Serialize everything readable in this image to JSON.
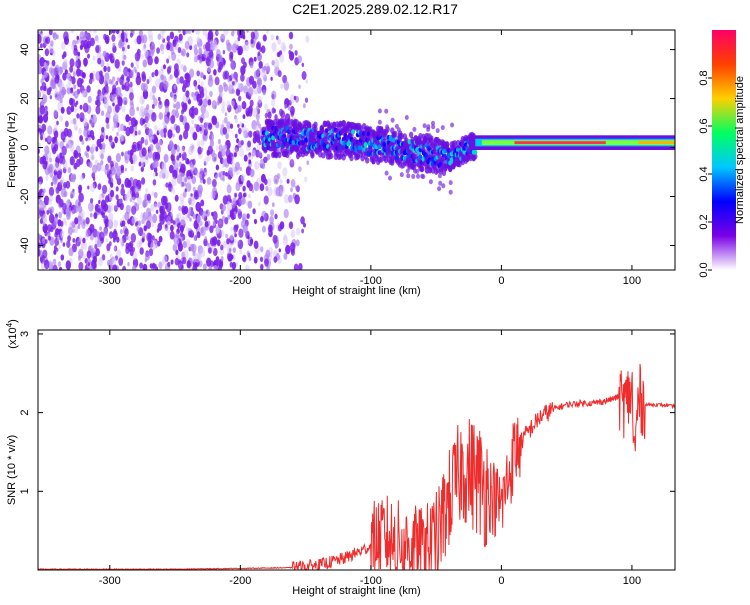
{
  "title": "C2E1.2025.289.02.12.R17",
  "chart_data": [
    {
      "type": "heatmap",
      "xlabel": "Height of straight line (km)",
      "ylabel": "Frequency (Hz)",
      "xlim": [
        -355,
        133
      ],
      "ylim": [
        -50,
        48
      ],
      "x_ticks": [
        -300,
        -200,
        -100,
        0,
        100
      ],
      "y_ticks": [
        40,
        20,
        0,
        -20,
        -40
      ],
      "colorbar": {
        "label": "Normalized spectral amplitude",
        "range": [
          0,
          1
        ],
        "ticks": [
          "0.0",
          "0.2",
          "0.4",
          "0.6",
          "0.8"
        ],
        "colors": [
          "#ffffff",
          "#7a00e6",
          "#0000ff",
          "#00c8ff",
          "#00ff60",
          "#ffd000",
          "#ff4000",
          "#ff0066"
        ]
      },
      "features": {
        "noise_region_x": [
          -355,
          -145
        ],
        "signal_line": [
          {
            "x": -180,
            "freq": 4
          },
          {
            "x": -120,
            "freq": 3
          },
          {
            "x": -80,
            "freq": 0
          },
          {
            "x": -40,
            "freq": -4
          },
          {
            "x": -25,
            "freq": 0
          },
          {
            "x": 0,
            "freq": 2
          },
          {
            "x": 133,
            "freq": 2
          }
        ]
      }
    },
    {
      "type": "line",
      "xlabel": "Height of straight line (km)",
      "ylabel": "SNR (10 * v/v)",
      "y_multiplier": "(x10",
      "y_multiplier_exp": "4",
      "y_multiplier_close": ")",
      "xlim": [
        -355,
        133
      ],
      "ylim": [
        0,
        3.05
      ],
      "x_ticks": [
        -300,
        -200,
        -100,
        0,
        100
      ],
      "y_ticks": [
        1,
        2,
        3
      ],
      "series_color": "#ee2c2c",
      "series": [
        {
          "x": [
            -355,
            -300,
            -250,
            -200,
            -160,
            -140,
            -120,
            -100,
            -90,
            -80,
            -60,
            -50,
            -40,
            -30,
            -20,
            -10,
            0,
            10,
            20,
            30,
            40,
            50,
            60,
            70,
            80,
            90,
            95,
            100,
            102,
            105,
            110,
            120,
            133
          ],
          "y": [
            0.01,
            0.01,
            0.01,
            0.02,
            0.03,
            0.06,
            0.15,
            0.3,
            0.45,
            0.35,
            0.25,
            0.4,
            0.9,
            1.3,
            1.2,
            1.0,
            0.8,
            1.5,
            1.75,
            1.95,
            2.05,
            2.1,
            2.12,
            2.12,
            2.15,
            2.2,
            2.1,
            2.3,
            1.4,
            2.2,
            2.1,
            2.1,
            2.08
          ]
        }
      ]
    }
  ]
}
